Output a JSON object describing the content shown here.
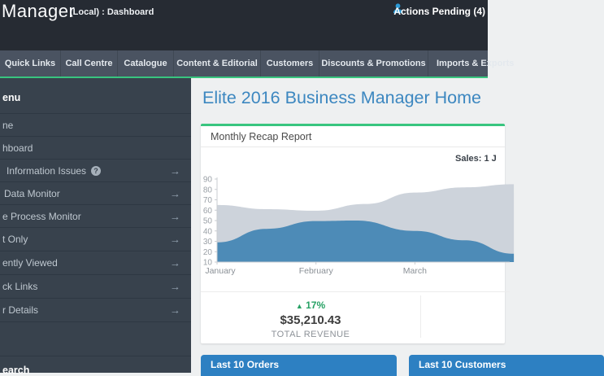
{
  "topbar": {
    "logo": "Manager",
    "breadcrumb": "(Local) : Dashboard",
    "actions_pending": "Actions Pending (4)"
  },
  "navbar": {
    "tabs": [
      {
        "label": "Quick Links"
      },
      {
        "label": "Call Centre"
      },
      {
        "label": "Catalogue"
      },
      {
        "label": "Content & Editorial"
      },
      {
        "label": "Customers"
      },
      {
        "label": "Discounts & Promotions"
      },
      {
        "label": "Imports & Exports"
      }
    ]
  },
  "sidebar": {
    "menu_header": "enu",
    "items": [
      {
        "label": "ne"
      },
      {
        "label": "hboard"
      },
      {
        "label": "Information Issues"
      },
      {
        "label": "Data Monitor"
      },
      {
        "label": "e Process Monitor"
      },
      {
        "label": "t Only"
      },
      {
        "label": "ently Viewed"
      },
      {
        "label": "ck Links"
      },
      {
        "label": "r Details"
      }
    ],
    "search_header": "earch"
  },
  "icons": {
    "arrow": "→",
    "help": "?"
  },
  "main": {
    "page_title": "Elite 2016 Business Manager Home",
    "panel_title": "Monthly Recap Report",
    "sales_note": "Sales: 1 J",
    "stats": {
      "direction": "▲",
      "change": "17%",
      "revenue": "$35,210.43",
      "label": "TOTAL REVENUE"
    },
    "bottom_panels": {
      "orders": "Last 10 Orders",
      "customers": "Last 10 Customers"
    }
  },
  "colors": {
    "accent_green": "#38c57f",
    "title_blue": "#3c87c0",
    "chart_blue": "#4d8bb7",
    "chart_gray": "#cdd3db",
    "bottom_bar_blue": "#2d80c2",
    "stat_green": "#27a164",
    "pending_icon_blue": "#2b9ad6",
    "topbar_dark": "#262b33",
    "navbar_slate": "#4a5361",
    "sidebar_dark": "#38424d"
  },
  "chart_data": {
    "type": "area",
    "title": "Monthly Recap Report",
    "x_tick_labels": [
      "January",
      "February",
      "March"
    ],
    "x_unit": "month-index (0=January, 1=February, 2=March; plot continues past right edge of crop)",
    "ylim": [
      10,
      90
    ],
    "y_ticks": [
      10,
      20,
      30,
      40,
      50,
      60,
      70,
      80,
      90
    ],
    "grid": false,
    "legend": "none",
    "series": [
      {
        "name": "upper-gray-series",
        "color": "#cdd3db",
        "points": [
          [
            0,
            65
          ],
          [
            0.5,
            61
          ],
          [
            1,
            59.5
          ],
          [
            1.5,
            66
          ],
          [
            2,
            77
          ],
          [
            2.5,
            82
          ],
          [
            3,
            85
          ]
        ]
      },
      {
        "name": "lower-blue-series",
        "color": "#4d8bb7",
        "points": [
          [
            0,
            29
          ],
          [
            0.5,
            42
          ],
          [
            1,
            49.5
          ],
          [
            1.4,
            50
          ],
          [
            2,
            40
          ],
          [
            2.5,
            31
          ],
          [
            3,
            18
          ]
        ]
      }
    ]
  }
}
